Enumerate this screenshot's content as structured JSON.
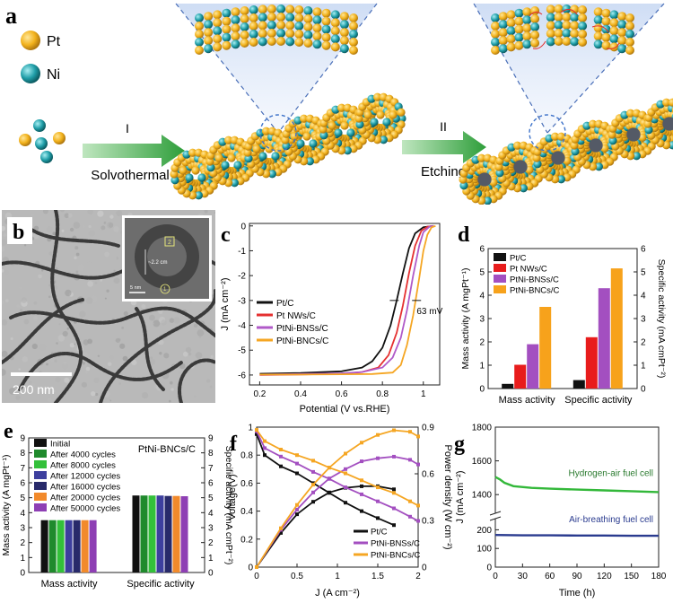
{
  "panel_a": {
    "letter": "a",
    "legend": [
      {
        "label": "Pt",
        "color": "#f2b21c"
      },
      {
        "label": "Ni",
        "color": "#1f9ea8"
      }
    ],
    "step1": {
      "numeral": "I",
      "label": "Solvothermal"
    },
    "step2": {
      "numeral": "II",
      "label": "Etching"
    }
  },
  "panel_b": {
    "letter": "b",
    "scale_bar": "200 nm",
    "inset_labels": [
      "2",
      "~2.2 cm",
      "1",
      "5 nm"
    ]
  },
  "chart_data": [
    {
      "panel": "c",
      "type": "line",
      "xlabel": "Potential (V vs.RHE)",
      "ylabel": "J (mA cm⁻²)",
      "xlim": [
        0.15,
        1.08
      ],
      "ylim": [
        -6.4,
        0.1
      ],
      "xticks": [
        0.2,
        0.4,
        0.6,
        0.8,
        1.0
      ],
      "yticks": [
        0,
        -1,
        -2,
        -3,
        -4,
        -5,
        -6
      ],
      "annotation": "63 mV",
      "legend_position": "bottom-left",
      "series": [
        {
          "name": "Pt/C",
          "color": "#111111",
          "points": [
            [
              0.2,
              -5.95
            ],
            [
              0.4,
              -5.92
            ],
            [
              0.6,
              -5.85
            ],
            [
              0.7,
              -5.7
            ],
            [
              0.75,
              -5.45
            ],
            [
              0.8,
              -4.9
            ],
            [
              0.84,
              -4.0
            ],
            [
              0.87,
              -3.0
            ],
            [
              0.9,
              -1.9
            ],
            [
              0.93,
              -0.9
            ],
            [
              0.96,
              -0.3
            ],
            [
              1.0,
              -0.05
            ],
            [
              1.05,
              0.0
            ]
          ]
        },
        {
          "name": "Pt NWs/C",
          "color": "#e53030",
          "points": [
            [
              0.2,
              -6.0
            ],
            [
              0.4,
              -5.98
            ],
            [
              0.6,
              -5.95
            ],
            [
              0.7,
              -5.88
            ],
            [
              0.78,
              -5.7
            ],
            [
              0.83,
              -5.2
            ],
            [
              0.87,
              -4.3
            ],
            [
              0.9,
              -3.2
            ],
            [
              0.93,
              -1.9
            ],
            [
              0.96,
              -0.8
            ],
            [
              0.99,
              -0.2
            ],
            [
              1.02,
              -0.03
            ],
            [
              1.05,
              0.0
            ]
          ]
        },
        {
          "name": "PtNi-BNSs/C",
          "color": "#b05ac8",
          "points": [
            [
              0.2,
              -5.98
            ],
            [
              0.4,
              -5.96
            ],
            [
              0.6,
              -5.93
            ],
            [
              0.7,
              -5.88
            ],
            [
              0.8,
              -5.7
            ],
            [
              0.85,
              -5.3
            ],
            [
              0.89,
              -4.5
            ],
            [
              0.92,
              -3.4
            ],
            [
              0.95,
              -2.0
            ],
            [
              0.98,
              -0.8
            ],
            [
              1.0,
              -0.25
            ],
            [
              1.03,
              -0.03
            ],
            [
              1.05,
              0.0
            ]
          ]
        },
        {
          "name": "PtNi-BNCs/C",
          "color": "#f5a623",
          "points": [
            [
              0.2,
              -5.98
            ],
            [
              0.4,
              -5.98
            ],
            [
              0.6,
              -5.97
            ],
            [
              0.75,
              -5.96
            ],
            [
              0.85,
              -5.9
            ],
            [
              0.89,
              -5.6
            ],
            [
              0.92,
              -4.8
            ],
            [
              0.95,
              -3.6
            ],
            [
              0.98,
              -2.1
            ],
            [
              1.0,
              -1.0
            ],
            [
              1.02,
              -0.35
            ],
            [
              1.04,
              -0.06
            ],
            [
              1.06,
              0.0
            ]
          ]
        }
      ]
    },
    {
      "panel": "d",
      "type": "bar",
      "categories": [
        "Mass activity",
        "Specific activity"
      ],
      "ylabel": "Mass activity (A mgPt⁻¹)",
      "y2label": "Specific activity (mA cmPt⁻²)",
      "ylim": [
        0,
        6
      ],
      "yticks": [
        0,
        1,
        2,
        3,
        4,
        5,
        6
      ],
      "legend_position": "top-left",
      "series": [
        {
          "name": "Pt/C",
          "color": "#111111",
          "values": [
            0.2,
            0.36
          ]
        },
        {
          "name": "Pt NWs/C",
          "color": "#e81c1c",
          "values": [
            1.02,
            2.2
          ]
        },
        {
          "name": "PtNi-BNSs/C",
          "color": "#a34fc0",
          "values": [
            1.9,
            4.3
          ]
        },
        {
          "name": "PtNi-BNCs/C",
          "color": "#f7a21b",
          "values": [
            3.5,
            5.15
          ]
        }
      ]
    },
    {
      "panel": "e",
      "type": "bar",
      "title": "PtNi-BNCs/C",
      "categories": [
        "Mass activity",
        "Specific activity"
      ],
      "ylabel": "Mass activity (A mgPt⁻¹)",
      "y2label": "Specific activity (mA cmPt⁻²)",
      "ylim": [
        0,
        9
      ],
      "yticks": [
        0,
        1,
        2,
        3,
        4,
        5,
        6,
        7,
        8,
        9
      ],
      "legend_position": "top-left",
      "series": [
        {
          "name": "Initial",
          "color": "#111111",
          "values": [
            3.5,
            5.15
          ]
        },
        {
          "name": "After 4000 cycles",
          "color": "#1f8a2c",
          "values": [
            3.5,
            5.15
          ]
        },
        {
          "name": "After 8000 cycles",
          "color": "#33c03a",
          "values": [
            3.5,
            5.15
          ]
        },
        {
          "name": "After 12000 cycles",
          "color": "#3d3f9e",
          "values": [
            3.5,
            5.15
          ]
        },
        {
          "name": "After 16000 cycles",
          "color": "#282a6a",
          "values": [
            3.5,
            5.12
          ]
        },
        {
          "name": "After 20000 cycles",
          "color": "#f28a2b",
          "values": [
            3.5,
            5.12
          ]
        },
        {
          "name": "After 50000 cycles",
          "color": "#8e3fb4",
          "values": [
            3.5,
            5.1
          ]
        }
      ]
    },
    {
      "panel": "f",
      "type": "line",
      "xlabel": "J (A cm⁻²)",
      "ylabel": "Voltage(V)",
      "y2label": "Power density (W cm⁻²)",
      "xlim": [
        0,
        2.0
      ],
      "xticks": [
        0,
        0.5,
        1.0,
        1.5,
        2.0
      ],
      "ylim": [
        0,
        1.0
      ],
      "yticks": [
        0,
        0.2,
        0.4,
        0.6,
        0.8,
        1.0
      ],
      "y2lim": [
        0,
        0.9
      ],
      "y2ticks": [
        0,
        0.3,
        0.6,
        0.9
      ],
      "legend_position": "bottom-right",
      "series": [
        {
          "name": "Pt/C",
          "color": "#111111",
          "voltage": [
            [
              0,
              0.95
            ],
            [
              0.1,
              0.8
            ],
            [
              0.3,
              0.72
            ],
            [
              0.5,
              0.67
            ],
            [
              0.7,
              0.6
            ],
            [
              0.9,
              0.53
            ],
            [
              1.1,
              0.46
            ],
            [
              1.3,
              0.4
            ],
            [
              1.5,
              0.35
            ],
            [
              1.7,
              0.3
            ]
          ],
          "power": [
            [
              0,
              0
            ],
            [
              0.3,
              0.22
            ],
            [
              0.5,
              0.34
            ],
            [
              0.7,
              0.42
            ],
            [
              0.9,
              0.48
            ],
            [
              1.1,
              0.51
            ],
            [
              1.3,
              0.52
            ],
            [
              1.5,
              0.52
            ],
            [
              1.7,
              0.5
            ]
          ]
        },
        {
          "name": "PtNi-BNSs/C",
          "color": "#a34fc0",
          "voltage": [
            [
              0,
              0.97
            ],
            [
              0.1,
              0.85
            ],
            [
              0.3,
              0.79
            ],
            [
              0.5,
              0.74
            ],
            [
              0.7,
              0.68
            ],
            [
              0.9,
              0.63
            ],
            [
              1.1,
              0.57
            ],
            [
              1.3,
              0.52
            ],
            [
              1.5,
              0.47
            ],
            [
              1.7,
              0.42
            ],
            [
              1.9,
              0.36
            ],
            [
              2.0,
              0.33
            ]
          ],
          "power": [
            [
              0,
              0
            ],
            [
              0.3,
              0.24
            ],
            [
              0.5,
              0.37
            ],
            [
              0.7,
              0.48
            ],
            [
              0.9,
              0.57
            ],
            [
              1.1,
              0.63
            ],
            [
              1.3,
              0.68
            ],
            [
              1.5,
              0.7
            ],
            [
              1.7,
              0.71
            ],
            [
              1.9,
              0.69
            ],
            [
              2.0,
              0.66
            ]
          ]
        },
        {
          "name": "PtNi-BNCs/C",
          "color": "#f5a623",
          "voltage": [
            [
              0,
              0.98
            ],
            [
              0.1,
              0.9
            ],
            [
              0.3,
              0.84
            ],
            [
              0.5,
              0.8
            ],
            [
              0.7,
              0.76
            ],
            [
              0.9,
              0.71
            ],
            [
              1.1,
              0.67
            ],
            [
              1.3,
              0.62
            ],
            [
              1.5,
              0.57
            ],
            [
              1.7,
              0.53
            ],
            [
              1.9,
              0.47
            ],
            [
              2.0,
              0.44
            ]
          ],
          "power": [
            [
              0,
              0
            ],
            [
              0.3,
              0.25
            ],
            [
              0.5,
              0.4
            ],
            [
              0.7,
              0.53
            ],
            [
              0.9,
              0.64
            ],
            [
              1.1,
              0.73
            ],
            [
              1.3,
              0.8
            ],
            [
              1.5,
              0.85
            ],
            [
              1.7,
              0.88
            ],
            [
              1.9,
              0.87
            ],
            [
              2.0,
              0.84
            ]
          ]
        }
      ]
    },
    {
      "panel": "g",
      "type": "line",
      "xlabel": "Time (h)",
      "ylabel": "J (mA cm⁻²)",
      "xlim": [
        0,
        180
      ],
      "xticks": [
        0,
        30,
        60,
        90,
        120,
        150,
        180
      ],
      "yticks": [
        1800,
        1600,
        1400,
        200,
        100,
        0
      ],
      "axis_break": true,
      "series": [
        {
          "name": "Hydrogen-air fuel cell",
          "color": "#33b83a",
          "points": [
            [
              0,
              1505
            ],
            [
              5,
              1490
            ],
            [
              10,
              1470
            ],
            [
              20,
              1450
            ],
            [
              40,
              1440
            ],
            [
              60,
              1435
            ],
            [
              90,
              1430
            ],
            [
              120,
              1425
            ],
            [
              150,
              1420
            ],
            [
              180,
              1415
            ]
          ]
        },
        {
          "name": "Air-breathing fuel cell",
          "color": "#2a3b8f",
          "points": [
            [
              0,
              172
            ],
            [
              30,
              170
            ],
            [
              60,
              170
            ],
            [
              90,
              169
            ],
            [
              120,
              169
            ],
            [
              150,
              168
            ],
            [
              180,
              168
            ]
          ]
        }
      ]
    }
  ]
}
